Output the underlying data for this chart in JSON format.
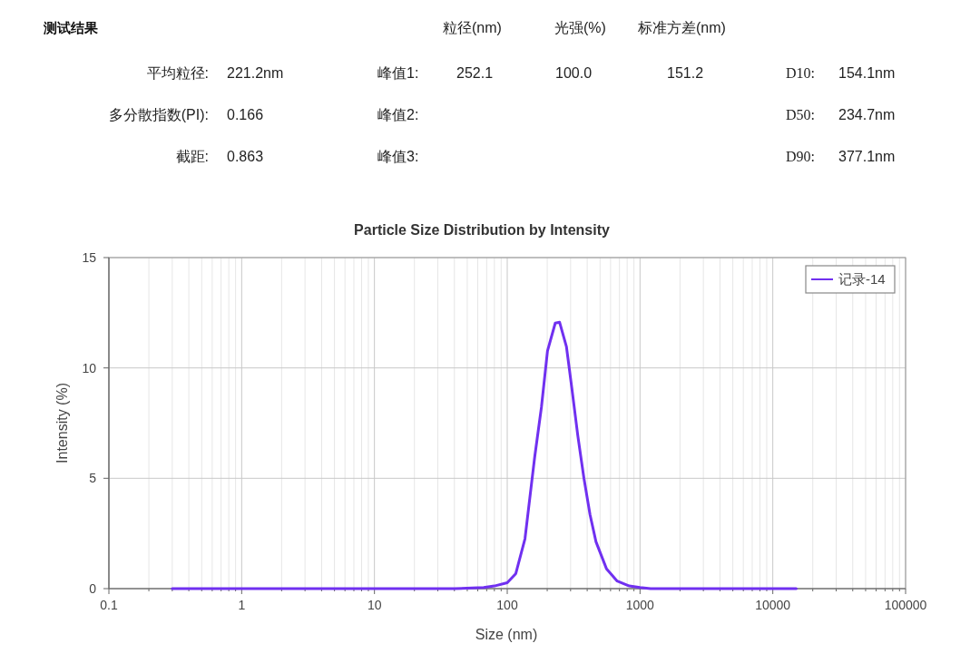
{
  "chart_data": [
    {
      "type": "other",
      "title": "测试结果",
      "annotations": [
        "粒径(nm)",
        "光强(%)",
        "标准方差(nm)",
        "平均粒径:",
        "221.2nm",
        "峰值1:",
        "252.1",
        "100.0",
        "151.2",
        "D10:",
        "154.1nm",
        "多分散指数(PI):",
        "0.166",
        "峰值2:",
        "D50:",
        "234.7nm",
        "截距:",
        "0.863",
        "峰值3:",
        "D90:",
        "377.1nm"
      ]
    },
    {
      "type": "line",
      "title": "Particle Size Distribution by Intensity",
      "xlabel": "Size (nm)",
      "ylabel": "Intensity (%)",
      "log": "x",
      "grid": true,
      "legend": "top right",
      "marker": "none",
      "line_style": "solid",
      "xlim": [
        0.1,
        100000
      ],
      "xticks": [
        0.1,
        1,
        10,
        100,
        1000,
        10000,
        100000
      ],
      "ylim": [
        0,
        15
      ],
      "yticks": [
        0,
        5,
        10,
        15
      ],
      "series": [
        {
          "name": "记录-14",
          "color": "#7030f0",
          "x": [
            0.3,
            1,
            10,
            40,
            66.5,
            80,
            100,
            116,
            136,
            161,
            181,
            201,
            230,
            248,
            279,
            306,
            340,
            378,
            420,
            466,
            560,
            673,
            830,
            1000,
            1200,
            5000,
            15000
          ],
          "values": [
            0,
            0,
            0,
            0,
            0.05,
            0.12,
            0.27,
            0.68,
            2.26,
            5.97,
            8.23,
            10.77,
            12.03,
            12.07,
            10.97,
            9.12,
            6.93,
            5.0,
            3.36,
            2.12,
            0.89,
            0.34,
            0.12,
            0.05,
            0,
            0,
            0
          ]
        }
      ]
    }
  ]
}
